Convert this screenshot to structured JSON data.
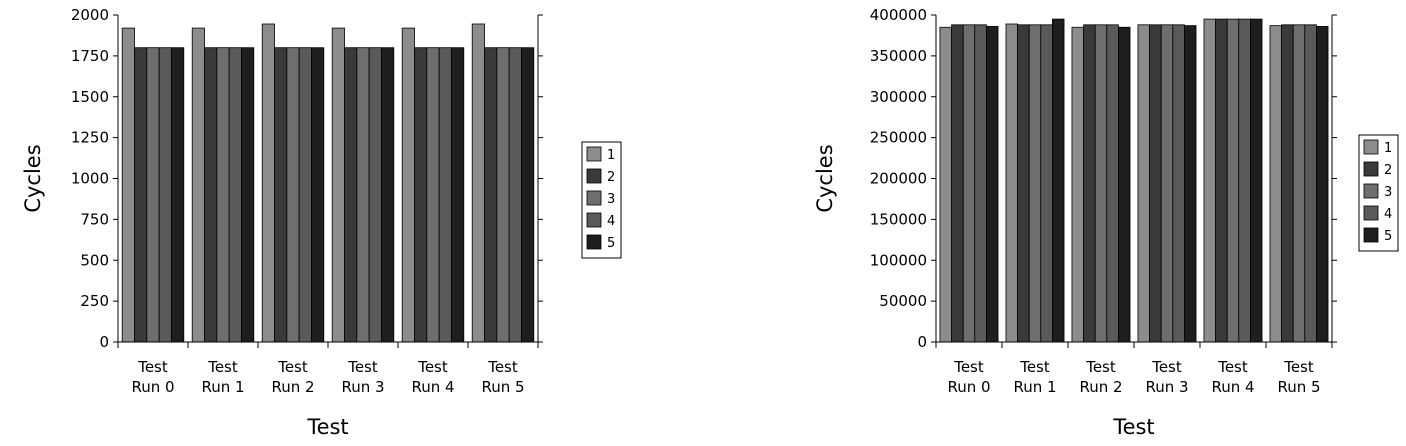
{
  "chart_data": [
    {
      "type": "bar",
      "categories": [
        [
          "Test",
          "Run 0"
        ],
        [
          "Test",
          "Run 1"
        ],
        [
          "Test",
          "Run 2"
        ],
        [
          "Test",
          "Run 3"
        ],
        [
          "Test",
          "Run 4"
        ],
        [
          "Test",
          "Run 5"
        ]
      ],
      "xlabel": "Test",
      "ylabel": "Cycles",
      "ylim": [
        0,
        2000
      ],
      "yticks": [
        0,
        250,
        500,
        750,
        1000,
        1250,
        1500,
        1750,
        2000
      ],
      "legend_position": "right",
      "series": [
        {
          "name": "1",
          "color": "#8c8c8c",
          "values": [
            1920,
            1920,
            1945,
            1920,
            1920,
            1945
          ]
        },
        {
          "name": "2",
          "color": "#3a3a3a",
          "values": [
            1800,
            1800,
            1800,
            1800,
            1800,
            1800
          ]
        },
        {
          "name": "3",
          "color": "#6e6e6e",
          "values": [
            1800,
            1800,
            1800,
            1800,
            1800,
            1800
          ]
        },
        {
          "name": "4",
          "color": "#5a5a5a",
          "values": [
            1800,
            1800,
            1800,
            1800,
            1800,
            1800
          ]
        },
        {
          "name": "5",
          "color": "#1e1e1e",
          "values": [
            1800,
            1800,
            1800,
            1800,
            1800,
            1800
          ]
        }
      ]
    },
    {
      "type": "bar",
      "categories": [
        [
          "Test",
          "Run 0"
        ],
        [
          "Test",
          "Run 1"
        ],
        [
          "Test",
          "Run 2"
        ],
        [
          "Test",
          "Run 3"
        ],
        [
          "Test",
          "Run 4"
        ],
        [
          "Test",
          "Run 5"
        ]
      ],
      "xlabel": "Test",
      "ylabel": "Cycles",
      "ylim": [
        0,
        400000
      ],
      "yticks": [
        0,
        50000,
        100000,
        150000,
        200000,
        250000,
        300000,
        350000,
        400000
      ],
      "legend_position": "right",
      "series": [
        {
          "name": "1",
          "color": "#8c8c8c",
          "values": [
            385000,
            389000,
            385000,
            388000,
            395000,
            387000
          ]
        },
        {
          "name": "2",
          "color": "#3a3a3a",
          "values": [
            388000,
            388000,
            388000,
            388000,
            395000,
            388000
          ]
        },
        {
          "name": "3",
          "color": "#6e6e6e",
          "values": [
            388000,
            388000,
            388000,
            388000,
            395000,
            388000
          ]
        },
        {
          "name": "4",
          "color": "#5a5a5a",
          "values": [
            388000,
            388000,
            388000,
            388000,
            395000,
            388000
          ]
        },
        {
          "name": "5",
          "color": "#1e1e1e",
          "values": [
            386000,
            395000,
            385000,
            387000,
            395000,
            386000
          ]
        }
      ]
    }
  ]
}
